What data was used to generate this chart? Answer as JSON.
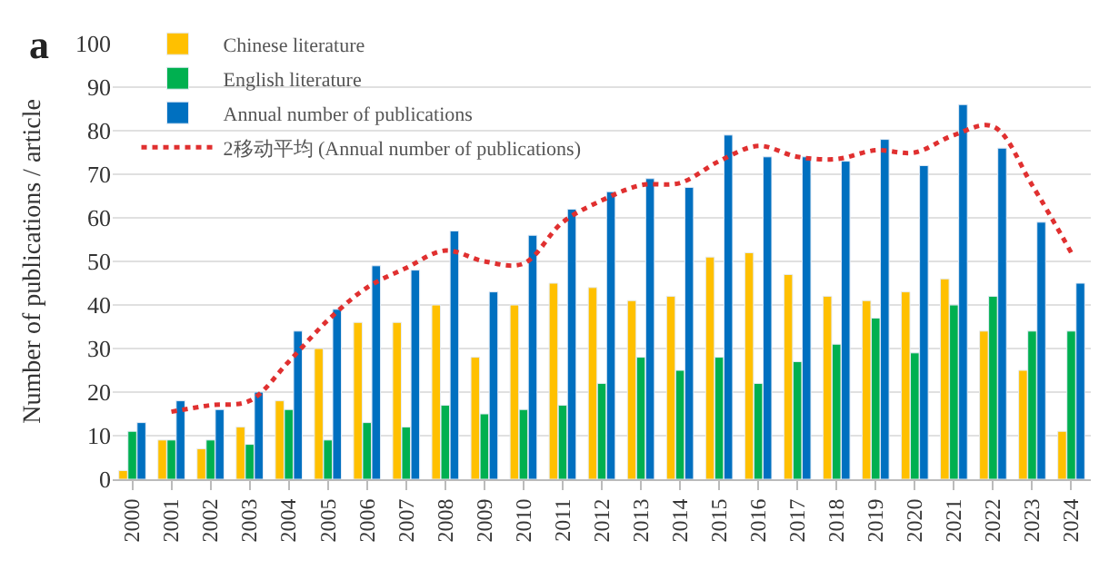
{
  "chart_data": {
    "type": "bar",
    "title": "a",
    "ylabel": "Number of publications / article",
    "categories": [
      "2000",
      "2001",
      "2002",
      "2003",
      "2004",
      "2005",
      "2006",
      "2007",
      "2008",
      "2009",
      "2010",
      "2011",
      "2012",
      "2013",
      "2014",
      "2015",
      "2016",
      "2017",
      "2018",
      "2019",
      "2020",
      "2021",
      "2022",
      "2023",
      "2024"
    ],
    "series": [
      {
        "name": "Chinese literature",
        "color": "#ffc000",
        "values": [
          2,
          9,
          7,
          12,
          18,
          30,
          36,
          36,
          40,
          28,
          40,
          45,
          44,
          41,
          42,
          51,
          52,
          47,
          42,
          41,
          43,
          46,
          34,
          25,
          11
        ]
      },
      {
        "name": "English literature",
        "color": "#00b050",
        "values": [
          11,
          9,
          9,
          8,
          16,
          9,
          13,
          12,
          17,
          15,
          16,
          17,
          22,
          28,
          25,
          28,
          22,
          27,
          31,
          37,
          29,
          40,
          42,
          34,
          34
        ]
      },
      {
        "name": "Annual number of publications",
        "color": "#0070c0",
        "values": [
          13,
          18,
          16,
          20,
          34,
          39,
          49,
          48,
          57,
          43,
          56,
          62,
          66,
          69,
          67,
          79,
          74,
          74,
          73,
          78,
          72,
          86,
          76,
          59,
          45
        ]
      },
      {
        "name": "2移动平均 (Annual number of publications)",
        "type": "line",
        "color": "#e03030",
        "line_style": "dotted",
        "marker": "none",
        "values": [
          null,
          15.5,
          17,
          18,
          27,
          36.5,
          44,
          48.5,
          52.5,
          50,
          49.5,
          59,
          64,
          67.5,
          68,
          73,
          76.5,
          74,
          73.5,
          75.5,
          75,
          79,
          81,
          67.5,
          52
        ]
      }
    ],
    "ylim": [
      0,
      100
    ],
    "yticks": [
      0,
      10,
      20,
      30,
      40,
      50,
      60,
      70,
      80,
      90,
      100
    ],
    "grid": "y",
    "legend": "top left"
  }
}
